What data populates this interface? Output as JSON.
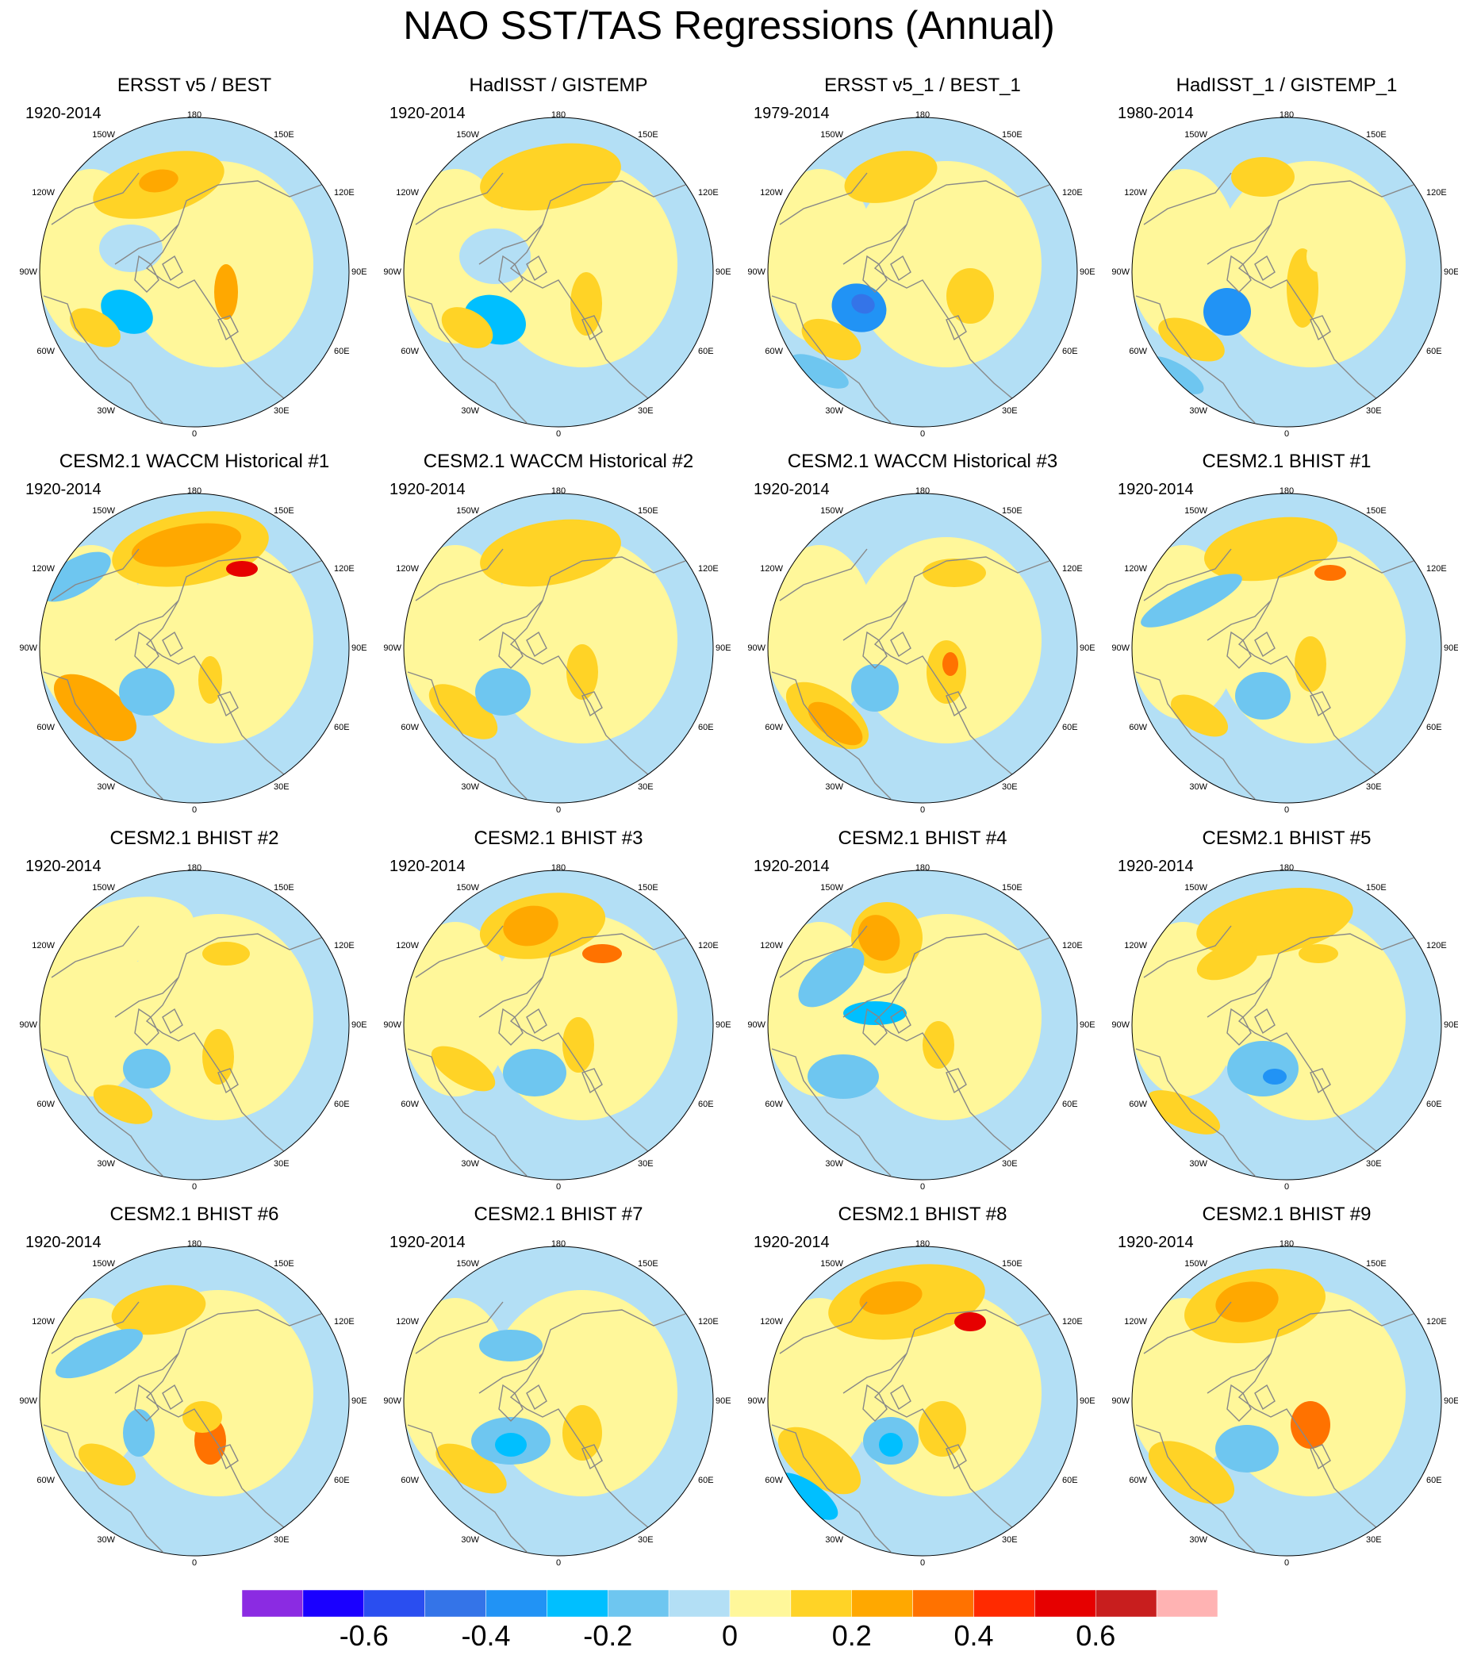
{
  "title": "NAO SST/TAS Regressions (Annual)",
  "longitude_labels": [
    "180",
    "150E",
    "120E",
    "90E",
    "60E",
    "30E",
    "0",
    "30W",
    "60W",
    "90W",
    "120W",
    "150W"
  ],
  "colors": {
    "background": "#ffffff",
    "land_outline": "#888888",
    "map_outline": "#000000"
  },
  "panels": [
    {
      "title": "ERSST v5 / BEST",
      "period": "1920-2014"
    },
    {
      "title": "HadISST / GISTEMP",
      "period": "1920-2014"
    },
    {
      "title": "ERSST v5_1 / BEST_1",
      "period": "1979-2014"
    },
    {
      "title": "HadISST_1 / GISTEMP_1",
      "period": "1980-2014"
    },
    {
      "title": "CESM2.1 WACCM Historical #1",
      "period": "1920-2014"
    },
    {
      "title": "CESM2.1 WACCM Historical #2",
      "period": "1920-2014"
    },
    {
      "title": "CESM2.1 WACCM Historical #3",
      "period": "1920-2014"
    },
    {
      "title": "CESM2.1 BHIST #1",
      "period": "1920-2014"
    },
    {
      "title": "CESM2.1 BHIST #2",
      "period": "1920-2014"
    },
    {
      "title": "CESM2.1 BHIST #3",
      "period": "1920-2014"
    },
    {
      "title": "CESM2.1 BHIST #4",
      "period": "1920-2014"
    },
    {
      "title": "CESM2.1 BHIST #5",
      "period": "1920-2014"
    },
    {
      "title": "CESM2.1 BHIST #6",
      "period": "1920-2014"
    },
    {
      "title": "CESM2.1 BHIST #7",
      "period": "1920-2014"
    },
    {
      "title": "CESM2.1 BHIST #8",
      "period": "1920-2014"
    },
    {
      "title": "CESM2.1 BHIST #9",
      "period": "1920-2014"
    }
  ],
  "colorbar": {
    "colors": [
      "#8b2be2",
      "#1a00ff",
      "#2a4ef0",
      "#3474e8",
      "#2193f5",
      "#00bfff",
      "#6ec6f0",
      "#b3dff5",
      "#fff79a",
      "#ffd326",
      "#ffa800",
      "#ff7200",
      "#ff2a00",
      "#e60000",
      "#c81e1e",
      "#ffb3b3"
    ],
    "tick_labels": [
      "-0.6",
      "-0.4",
      "-0.2",
      "0",
      "0.2",
      "0.4",
      "0.6"
    ]
  }
}
